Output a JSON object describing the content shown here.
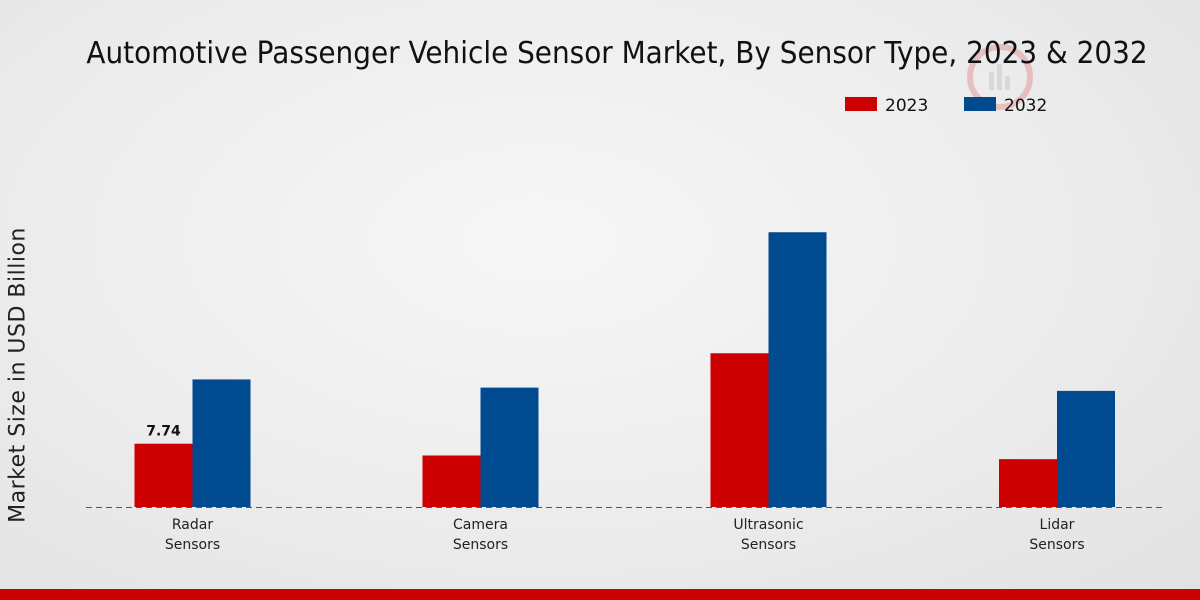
{
  "chart_data": {
    "type": "bar",
    "title": "Automotive Passenger Vehicle Sensor Market, By Sensor Type, 2023 & 2032",
    "xlabel": "",
    "ylabel": "Market Size in USD Billion",
    "categories": [
      "Radar\nSensors",
      "Camera\nSensors",
      "Ultrasonic\nSensors",
      "Lidar\nSensors"
    ],
    "series": [
      {
        "name": "2023",
        "color": "#cc0000",
        "values": [
          7.74,
          6.3,
          18.8,
          5.85
        ]
      },
      {
        "name": "2032",
        "color": "#004a8f",
        "values": [
          15.6,
          14.6,
          33.6,
          14.2
        ]
      }
    ],
    "data_labels": [
      {
        "series": "2023",
        "category_index": 0,
        "text": "7.74"
      }
    ],
    "ylim": [
      0,
      62
    ],
    "legend_position": "top-right",
    "grid": false
  }
}
